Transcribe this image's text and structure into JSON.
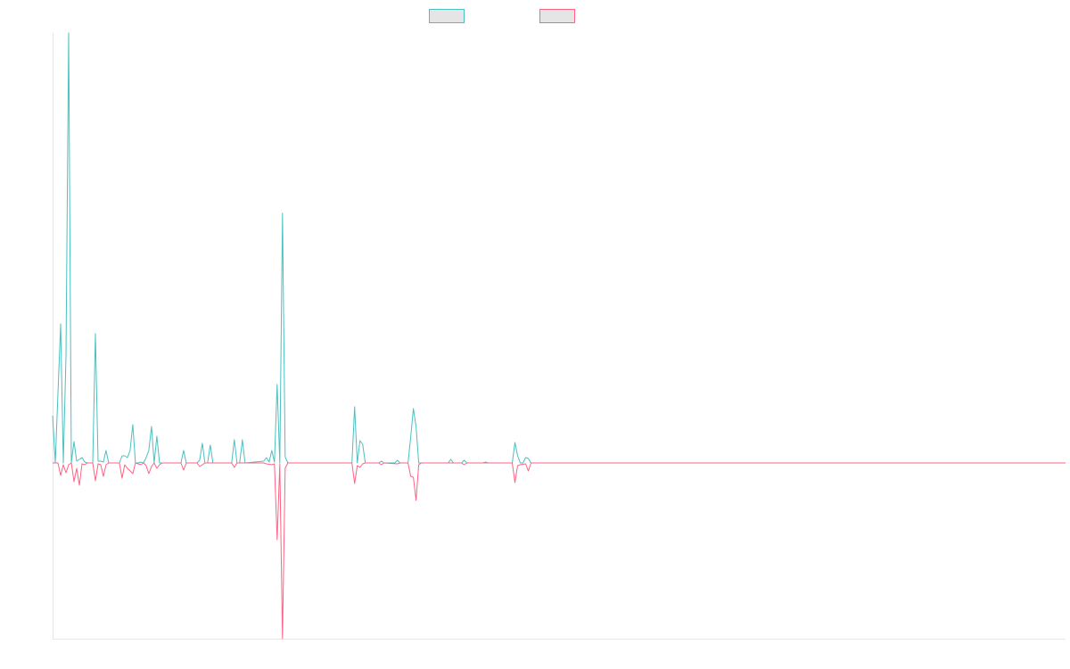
{
  "chart_data": {
    "type": "line",
    "title": "",
    "xlabel": "",
    "ylabel": "",
    "x_range": [
      0,
      379
    ],
    "ylim": [
      -197,
      482
    ],
    "grid": false,
    "legend_position": "top",
    "legend_fill": "#e5e5e5",
    "series": [
      {
        "color": "#4bc0c0",
        "points": [
          [
            0,
            53
          ],
          [
            1,
            0
          ],
          [
            3,
            156
          ],
          [
            4,
            0
          ],
          [
            5,
            119
          ],
          [
            6,
            482
          ],
          [
            7,
            0
          ],
          [
            8,
            24
          ],
          [
            9,
            2
          ],
          [
            10,
            4
          ],
          [
            11,
            6
          ],
          [
            12,
            1
          ],
          [
            13,
            0
          ],
          [
            15,
            0
          ],
          [
            16,
            145
          ],
          [
            17,
            2
          ],
          [
            18,
            2
          ],
          [
            19,
            1
          ],
          [
            20,
            14
          ],
          [
            21,
            0
          ],
          [
            25,
            0
          ],
          [
            26,
            8
          ],
          [
            27,
            8
          ],
          [
            28,
            6
          ],
          [
            29,
            14
          ],
          [
            30,
            43
          ],
          [
            31,
            0
          ],
          [
            32,
            0
          ],
          [
            33,
            1
          ],
          [
            34,
            0
          ],
          [
            35,
            6
          ],
          [
            36,
            14
          ],
          [
            37,
            41
          ],
          [
            38,
            0
          ],
          [
            39,
            30
          ],
          [
            40,
            0
          ],
          [
            48,
            0
          ],
          [
            49,
            14
          ],
          [
            50,
            0
          ],
          [
            54,
            0
          ],
          [
            55,
            3
          ],
          [
            56,
            22
          ],
          [
            57,
            0
          ],
          [
            58,
            0
          ],
          [
            59,
            20
          ],
          [
            60,
            0
          ],
          [
            67,
            0
          ],
          [
            68,
            26
          ],
          [
            69,
            0
          ],
          [
            70,
            0
          ],
          [
            71,
            26
          ],
          [
            72,
            0
          ],
          [
            79,
            2
          ],
          [
            80,
            6
          ],
          [
            81,
            1
          ],
          [
            82,
            14
          ],
          [
            83,
            1
          ],
          [
            84,
            88
          ],
          [
            85,
            0
          ],
          [
            86,
            280
          ],
          [
            87,
            7
          ],
          [
            88,
            0
          ],
          [
            112,
            0
          ],
          [
            113,
            63
          ],
          [
            114,
            0
          ],
          [
            115,
            25
          ],
          [
            116,
            21
          ],
          [
            117,
            0
          ],
          [
            122,
            0
          ],
          [
            123,
            2
          ],
          [
            124,
            0
          ],
          [
            128,
            0
          ],
          [
            129,
            3
          ],
          [
            130,
            0
          ],
          [
            133,
            0
          ],
          [
            134,
            29
          ],
          [
            135,
            61
          ],
          [
            136,
            41
          ],
          [
            137,
            0
          ],
          [
            148,
            0
          ],
          [
            149,
            4
          ],
          [
            150,
            0
          ],
          [
            153,
            0
          ],
          [
            154,
            3
          ],
          [
            155,
            0
          ],
          [
            161,
            0
          ],
          [
            162,
            1
          ],
          [
            163,
            0
          ],
          [
            172,
            0
          ],
          [
            173,
            23
          ],
          [
            174,
            8
          ],
          [
            175,
            0
          ],
          [
            176,
            0
          ],
          [
            177,
            6
          ],
          [
            178,
            5
          ],
          [
            179,
            0
          ],
          [
            379,
            0
          ]
        ]
      },
      {
        "color": "#ff6384",
        "points": [
          [
            0,
            0
          ],
          [
            2,
            0
          ],
          [
            3,
            -14
          ],
          [
            4,
            -2
          ],
          [
            5,
            -11
          ],
          [
            6,
            -2
          ],
          [
            7,
            0
          ],
          [
            8,
            -21
          ],
          [
            9,
            -6
          ],
          [
            10,
            -25
          ],
          [
            11,
            -1
          ],
          [
            12,
            -2
          ],
          [
            13,
            0
          ],
          [
            15,
            0
          ],
          [
            16,
            -20
          ],
          [
            17,
            -1
          ],
          [
            18,
            -2
          ],
          [
            19,
            -15
          ],
          [
            20,
            -2
          ],
          [
            21,
            0
          ],
          [
            25,
            0
          ],
          [
            26,
            -17
          ],
          [
            27,
            -2
          ],
          [
            28,
            -6
          ],
          [
            29,
            -9
          ],
          [
            30,
            -12
          ],
          [
            31,
            0
          ],
          [
            32,
            -1
          ],
          [
            33,
            -2
          ],
          [
            34,
            0
          ],
          [
            35,
            -3
          ],
          [
            36,
            -12
          ],
          [
            37,
            -4
          ],
          [
            38,
            0
          ],
          [
            39,
            -6
          ],
          [
            40,
            -2
          ],
          [
            41,
            0
          ],
          [
            48,
            0
          ],
          [
            49,
            -8
          ],
          [
            50,
            0
          ],
          [
            54,
            0
          ],
          [
            55,
            -4
          ],
          [
            56,
            -2
          ],
          [
            57,
            0
          ],
          [
            67,
            0
          ],
          [
            68,
            -5
          ],
          [
            69,
            0
          ],
          [
            79,
            0
          ],
          [
            80,
            -1
          ],
          [
            82,
            -2
          ],
          [
            83,
            -1
          ],
          [
            84,
            -86
          ],
          [
            85,
            -1
          ],
          [
            86,
            -197
          ],
          [
            87,
            -6
          ],
          [
            88,
            0
          ],
          [
            112,
            0
          ],
          [
            113,
            -23
          ],
          [
            114,
            -3
          ],
          [
            115,
            -5
          ],
          [
            116,
            -1
          ],
          [
            117,
            0
          ],
          [
            122,
            0
          ],
          [
            123,
            -2
          ],
          [
            124,
            0
          ],
          [
            129,
            -1
          ],
          [
            130,
            0
          ],
          [
            133,
            0
          ],
          [
            134,
            -15
          ],
          [
            135,
            -16
          ],
          [
            136,
            -42
          ],
          [
            137,
            -2
          ],
          [
            138,
            0
          ],
          [
            153,
            0
          ],
          [
            154,
            -2
          ],
          [
            155,
            0
          ],
          [
            172,
            0
          ],
          [
            173,
            -22
          ],
          [
            174,
            -3
          ],
          [
            175,
            -2
          ],
          [
            177,
            -1
          ],
          [
            178,
            -9
          ],
          [
            179,
            0
          ],
          [
            379,
            0
          ]
        ]
      }
    ]
  }
}
